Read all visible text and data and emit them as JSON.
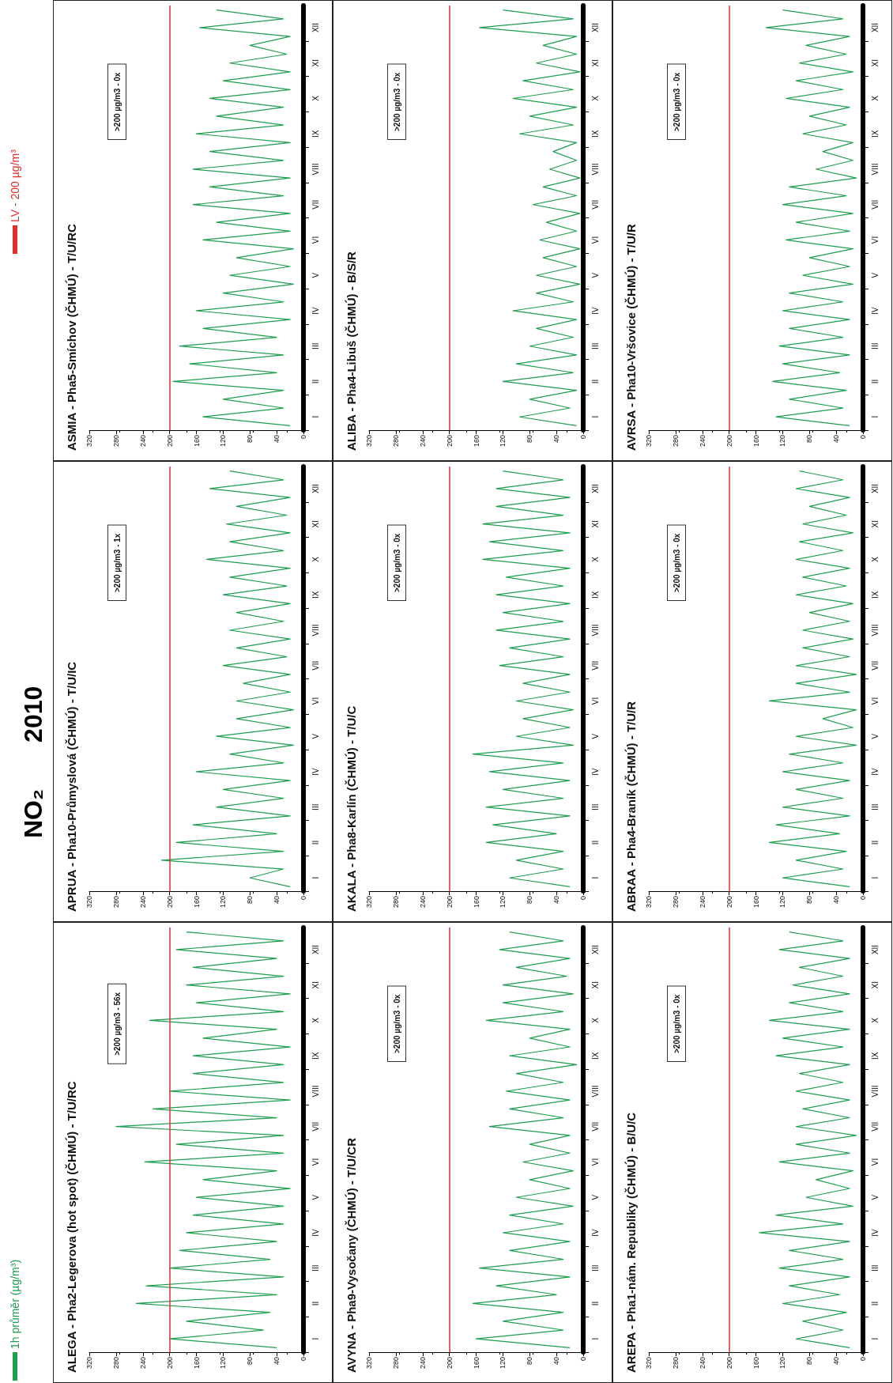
{
  "chart_data": [
    {
      "type": "line",
      "orientation": "horizontal",
      "title": "ALEGA - Pha2-Legerova (hot spot) (ČHMÚ) - T/U/RC",
      "subtitle": "NO₂ 2010",
      "legend": "left",
      "marker": "none",
      "grid": false,
      "annotations": [
        ">200 µg/m3 - 56x"
      ],
      "categories": [
        null,
        null,
        "XII",
        null,
        null,
        null,
        "XI",
        null,
        null,
        null,
        "X",
        null,
        null,
        null,
        "IX",
        null,
        null,
        null,
        "VIII",
        null,
        null,
        null,
        "VII",
        null,
        null,
        null,
        "VI",
        null,
        null,
        null,
        "V",
        null,
        null,
        null,
        "IV",
        null,
        null,
        null,
        "III",
        null,
        null,
        null,
        "II",
        null,
        null,
        null,
        "I",
        null
      ],
      "xlim": [
        320,
        0
      ],
      "xticks": [
        0,
        40,
        80,
        120,
        160,
        200,
        240,
        280,
        320
      ],
      "ref_lines": [
        {
          "axis": "x",
          "value": 200,
          "label": "LV - 200 µg/m³",
          "color": "#e0302e"
        }
      ],
      "series": [
        {
          "name": "1h průměr (µg/m³)",
          "color": "#1e9e4e",
          "values": [
            175,
            30,
            190,
            40,
            165,
            30,
            175,
            20,
            160,
            30,
            230,
            40,
            150,
            20,
            165,
            30,
            165,
            30,
            200,
            20,
            225,
            40,
            280,
            30,
            190,
            30,
            237,
            40,
            150,
            20,
            160,
            30,
            165,
            30,
            175,
            40,
            185,
            50,
            200,
            30,
            235,
            40,
            250,
            50,
            175,
            60,
            200,
            40
          ]
        }
      ]
    },
    {
      "type": "line",
      "orientation": "horizontal",
      "title": "APRUA - Pha10-Průmyslová (ČHMÚ) - T/U/IC",
      "marker": "none",
      "grid": false,
      "annotations": [
        ">200 µg/m3 - 1x"
      ],
      "categories": [
        null,
        null,
        "XII",
        null,
        null,
        null,
        "XI",
        null,
        null,
        null,
        "X",
        null,
        null,
        null,
        "IX",
        null,
        null,
        null,
        "VIII",
        null,
        null,
        null,
        "VII",
        null,
        null,
        null,
        "VI",
        null,
        null,
        null,
        "V",
        null,
        null,
        null,
        "IV",
        null,
        null,
        null,
        "III",
        null,
        null,
        null,
        "II",
        null,
        null,
        null,
        "I",
        null
      ],
      "xlim": [
        320,
        0
      ],
      "xticks": [
        0,
        40,
        80,
        120,
        160,
        200,
        240,
        280,
        320
      ],
      "ref_lines": [
        {
          "axis": "x",
          "value": 200,
          "color": "#e0302e"
        }
      ],
      "series": [
        {
          "color": "#1e9e4e",
          "values": [
            110,
            30,
            140,
            20,
            100,
            25,
            115,
            20,
            110,
            30,
            145,
            20,
            110,
            25,
            120,
            20,
            100,
            30,
            110,
            20,
            100,
            25,
            120,
            20,
            90,
            20,
            100,
            15,
            100,
            20,
            130,
            15,
            110,
            30,
            160,
            20,
            120,
            30,
            130,
            20,
            165,
            40,
            190,
            30,
            212,
            30,
            80,
            20
          ]
        }
      ]
    },
    {
      "type": "line",
      "orientation": "horizontal",
      "title": "ASMIA - Pha5-Smíchov (ČHMÚ) - T/U/RC",
      "marker": "none",
      "grid": false,
      "annotations": [
        ">200 µg/m3 - 0x"
      ],
      "categories": [
        null,
        null,
        "XII",
        null,
        null,
        null,
        "XI",
        null,
        null,
        null,
        "X",
        null,
        null,
        null,
        "IX",
        null,
        null,
        null,
        "VIII",
        null,
        null,
        null,
        "VII",
        null,
        null,
        null,
        "VI",
        null,
        null,
        null,
        "V",
        null,
        null,
        null,
        "IV",
        null,
        null,
        null,
        "III",
        null,
        null,
        null,
        "II",
        null,
        null,
        null,
        "I",
        null
      ],
      "xlim": [
        320,
        0
      ],
      "xticks": [
        0,
        40,
        80,
        120,
        160,
        200,
        240,
        280,
        320
      ],
      "ref_lines": [
        {
          "axis": "x",
          "value": 200,
          "color": "#e0302e"
        }
      ],
      "series": [
        {
          "color": "#1e9e4e",
          "values": [
            130,
            30,
            155,
            20,
            80,
            25,
            110,
            20,
            120,
            20,
            140,
            30,
            130,
            30,
            160,
            20,
            140,
            30,
            165,
            20,
            140,
            30,
            165,
            20,
            130,
            20,
            150,
            15,
            100,
            20,
            110,
            15,
            120,
            30,
            160,
            20,
            150,
            40,
            185,
            30,
            170,
            40,
            195,
            30,
            120,
            30,
            150,
            20
          ]
        }
      ]
    },
    {
      "type": "line",
      "orientation": "horizontal",
      "title": "AVYNA - Pha9-Vysočany (ČHMÚ) - T/U/CR",
      "marker": "none",
      "grid": false,
      "annotations": [
        ">200 µg/m3 - 0x"
      ],
      "categories": [
        null,
        null,
        "XII",
        null,
        null,
        null,
        "XI",
        null,
        null,
        null,
        "X",
        null,
        null,
        null,
        "IX",
        null,
        null,
        null,
        "VIII",
        null,
        null,
        null,
        "VII",
        null,
        null,
        null,
        "VI",
        null,
        null,
        null,
        "V",
        null,
        null,
        null,
        "IV",
        null,
        null,
        null,
        "III",
        null,
        null,
        null,
        "II",
        null,
        null,
        null,
        "I",
        null
      ],
      "xlim": [
        320,
        0
      ],
      "xticks": [
        0,
        40,
        80,
        120,
        160,
        200,
        240,
        280,
        320
      ],
      "ref_lines": [
        {
          "axis": "x",
          "value": 200,
          "color": "#e0302e"
        }
      ],
      "series": [
        {
          "color": "#1e9e4e",
          "values": [
            110,
            30,
            125,
            20,
            100,
            25,
            120,
            15,
            120,
            30,
            145,
            20,
            80,
            20,
            110,
            10,
            100,
            30,
            115,
            20,
            110,
            30,
            140,
            20,
            80,
            20,
            90,
            15,
            80,
            20,
            100,
            15,
            110,
            30,
            120,
            20,
            110,
            30,
            155,
            20,
            130,
            40,
            165,
            30,
            120,
            30,
            160,
            20
          ]
        }
      ]
    },
    {
      "type": "line",
      "orientation": "horizontal",
      "title": "AKALA - Pha8-Karlín (ČHMÚ) - T/U/C",
      "marker": "none",
      "grid": false,
      "annotations": [
        ">200 µg/m3 - 0x"
      ],
      "categories": [
        null,
        null,
        "XII",
        null,
        null,
        null,
        "XI",
        null,
        null,
        null,
        "X",
        null,
        null,
        null,
        "IX",
        null,
        null,
        null,
        "VIII",
        null,
        null,
        null,
        "VII",
        null,
        null,
        null,
        "VI",
        null,
        null,
        null,
        "V",
        null,
        null,
        null,
        "IV",
        null,
        null,
        null,
        "III",
        null,
        null,
        null,
        "II",
        null,
        null,
        null,
        "I",
        null
      ],
      "xlim": [
        320,
        0
      ],
      "xticks": [
        0,
        40,
        80,
        120,
        160,
        200,
        240,
        280,
        320
      ],
      "ref_lines": [
        {
          "axis": "x",
          "value": 200,
          "color": "#e0302e"
        }
      ],
      "series": [
        {
          "color": "#1e9e4e",
          "values": [
            120,
            30,
            130,
            20,
            130,
            30,
            150,
            20,
            140,
            30,
            150,
            20,
            115,
            30,
            130,
            20,
            120,
            30,
            130,
            20,
            110,
            30,
            125,
            20,
            90,
            20,
            100,
            15,
            90,
            20,
            100,
            15,
            165,
            30,
            140,
            20,
            120,
            30,
            145,
            20,
            135,
            40,
            145,
            30,
            100,
            30,
            110,
            20
          ]
        }
      ]
    },
    {
      "type": "line",
      "orientation": "horizontal",
      "title": "ALIBA - Pha4-Libuš (ČHMÚ) - B/S/R",
      "marker": "none",
      "grid": false,
      "annotations": [
        ">200 µg/m3 - 0x"
      ],
      "categories": [
        null,
        null,
        "XII",
        null,
        null,
        null,
        "XI",
        null,
        null,
        null,
        "X",
        null,
        null,
        null,
        "IX",
        null,
        null,
        null,
        "VIII",
        null,
        null,
        null,
        "VII",
        null,
        null,
        null,
        "VI",
        null,
        null,
        null,
        "V",
        null,
        null,
        null,
        "IV",
        null,
        null,
        null,
        "III",
        null,
        null,
        null,
        "II",
        null,
        null,
        null,
        "I",
        null
      ],
      "xlim": [
        320,
        0
      ],
      "xticks": [
        0,
        40,
        80,
        120,
        160,
        200,
        240,
        280,
        320
      ],
      "ref_lines": [
        {
          "axis": "x",
          "value": 200,
          "color": "#e0302e"
        }
      ],
      "series": [
        {
          "color": "#1e9e4e",
          "values": [
            120,
            15,
            155,
            10,
            60,
            10,
            70,
            5,
            90,
            15,
            105,
            10,
            80,
            15,
            95,
            10,
            45,
            10,
            50,
            5,
            60,
            10,
            75,
            5,
            55,
            10,
            65,
            5,
            60,
            10,
            70,
            5,
            70,
            15,
            105,
            10,
            70,
            15,
            80,
            10,
            100,
            15,
            120,
            10,
            80,
            20,
            95,
            10
          ]
        }
      ]
    },
    {
      "type": "line",
      "orientation": "horizontal",
      "title": "AREPA - Pha1-nám. Republiky (ČHMÚ) - B/U/C",
      "marker": "none",
      "grid": false,
      "annotations": [
        ">200 µg/m3 - 0x"
      ],
      "categories": [
        null,
        null,
        "XII",
        null,
        null,
        null,
        "XI",
        null,
        null,
        null,
        "X",
        null,
        null,
        null,
        "IX",
        null,
        null,
        null,
        "VIII",
        null,
        null,
        null,
        "VII",
        null,
        null,
        null,
        "VI",
        null,
        null,
        null,
        "V",
        null,
        null,
        null,
        "IV",
        null,
        null,
        null,
        "III",
        null,
        null,
        null,
        "II",
        null,
        null,
        null,
        "I",
        null
      ],
      "xlim": [
        320,
        0
      ],
      "xticks": [
        0,
        40,
        80,
        120,
        160,
        200,
        240,
        280,
        320
      ],
      "ref_lines": [
        {
          "axis": "x",
          "value": 200,
          "color": "#e0302e"
        }
      ],
      "series": [
        {
          "color": "#1e9e4e",
          "values": [
            110,
            30,
            125,
            20,
            95,
            30,
            105,
            20,
            110,
            30,
            140,
            20,
            120,
            30,
            130,
            20,
            95,
            30,
            100,
            20,
            90,
            20,
            100,
            10,
            100,
            20,
            125,
            15,
            70,
            20,
            85,
            15,
            130,
            30,
            155,
            20,
            110,
            30,
            125,
            20,
            110,
            35,
            120,
            25,
            90,
            30,
            100,
            20
          ]
        }
      ]
    },
    {
      "type": "line",
      "orientation": "horizontal",
      "title": "ABRAA - Pha4-Braník (ČHMÚ) - T/U/R",
      "marker": "none",
      "grid": false,
      "annotations": [
        ">200 µg/m3 - 0x"
      ],
      "categories": [
        null,
        null,
        "XII",
        null,
        null,
        null,
        "XI",
        null,
        null,
        null,
        "X",
        null,
        null,
        null,
        "IX",
        null,
        null,
        null,
        "VIII",
        null,
        null,
        null,
        "VII",
        null,
        null,
        null,
        "VI",
        null,
        null,
        null,
        "V",
        null,
        null,
        null,
        "IV",
        null,
        null,
        null,
        "III",
        null,
        null,
        null,
        "II",
        null,
        null,
        null,
        "I",
        null
      ],
      "xlim": [
        320,
        0
      ],
      "xticks": [
        0,
        40,
        80,
        120,
        160,
        200,
        240,
        280,
        320
      ],
      "ref_lines": [
        {
          "axis": "x",
          "value": 200,
          "color": "#e0302e"
        }
      ],
      "series": [
        {
          "color": "#1e9e4e",
          "values": [
            95,
            30,
            100,
            20,
            80,
            25,
            90,
            15,
            95,
            30,
            100,
            20,
            90,
            25,
            100,
            15,
            80,
            20,
            90,
            15,
            90,
            20,
            100,
            10,
            100,
            20,
            140,
            10,
            60,
            15,
            100,
            10,
            110,
            30,
            120,
            20,
            100,
            30,
            120,
            20,
            130,
            35,
            140,
            25,
            100,
            30,
            120,
            20
          ]
        }
      ]
    },
    {
      "type": "line",
      "orientation": "horizontal",
      "title": "AVRSA - Pha10-Vršovice (ČHMÚ) - T/U/R",
      "marker": "none",
      "grid": false,
      "annotations": [
        ">200 µg/m3 - 0x"
      ],
      "categories": [
        null,
        null,
        "XII",
        null,
        null,
        null,
        "XI",
        null,
        null,
        null,
        "X",
        null,
        null,
        null,
        "IX",
        null,
        null,
        null,
        "VIII",
        null,
        null,
        null,
        "VII",
        null,
        null,
        null,
        "VI",
        null,
        null,
        null,
        "V",
        null,
        null,
        null,
        "IV",
        null,
        null,
        null,
        "III",
        null,
        null,
        null,
        "II",
        null,
        null,
        null,
        "I",
        null
      ],
      "xlim": [
        320,
        0
      ],
      "xticks": [
        0,
        40,
        80,
        120,
        160,
        200,
        240,
        280,
        320
      ],
      "ref_lines": [
        {
          "axis": "x",
          "value": 200,
          "color": "#e0302e"
        }
      ],
      "series": [
        {
          "color": "#1e9e4e",
          "values": [
            120,
            30,
            145,
            20,
            85,
            25,
            95,
            15,
            100,
            30,
            115,
            20,
            80,
            25,
            90,
            15,
            60,
            15,
            70,
            10,
            110,
            25,
            120,
            15,
            100,
            20,
            115,
            15,
            80,
            20,
            90,
            15,
            110,
            30,
            120,
            20,
            110,
            30,
            125,
            20,
            120,
            35,
            135,
            25,
            110,
            30,
            130,
            20
          ]
        }
      ]
    }
  ]
}
